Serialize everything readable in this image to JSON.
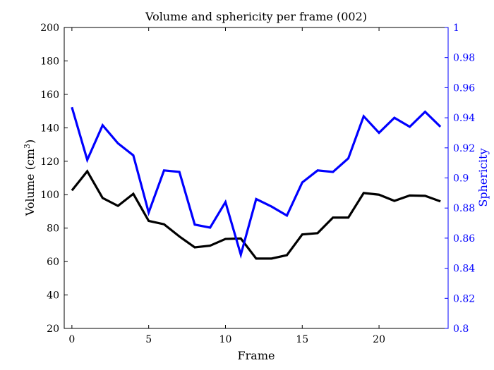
{
  "chart_data": {
    "type": "line",
    "title": "Volume and sphericity per frame (002)",
    "xlabel": "Frame",
    "ylabel_left": "Volume (cm",
    "ylabel_left_superscript": "3",
    "ylabel_left_suffix": ")",
    "ylabel_right": "Sphericity",
    "xlim": [
      -0.5,
      24.5
    ],
    "ylim_left": [
      20,
      200
    ],
    "ylim_right": [
      0.8,
      1.0
    ],
    "x_ticks": [
      0,
      5,
      10,
      15,
      20
    ],
    "x_tick_labels": [
      "0",
      "5",
      "10",
      "15",
      "20"
    ],
    "y_left_ticks": [
      20,
      40,
      60,
      80,
      100,
      120,
      140,
      160,
      180,
      200
    ],
    "y_left_tick_labels": [
      "20",
      "40",
      "60",
      "80",
      "100",
      "120",
      "140",
      "160",
      "180",
      "200"
    ],
    "y_right_ticks": [
      0.8,
      0.82,
      0.84,
      0.86,
      0.88,
      0.9,
      0.92,
      0.94,
      0.96,
      0.98,
      1.0
    ],
    "y_right_tick_labels": [
      "0.8",
      "0.82",
      "0.84",
      "0.86",
      "0.88",
      "0.9",
      "0.92",
      "0.94",
      "0.96",
      "0.98",
      "1"
    ],
    "grid": false,
    "x": [
      0,
      1,
      2,
      3,
      4,
      5,
      6,
      7,
      8,
      9,
      10,
      11,
      12,
      13,
      14,
      15,
      16,
      17,
      18,
      19,
      20,
      21,
      22,
      23,
      24
    ],
    "series": [
      {
        "axis": "left",
        "color": "#000000",
        "values": [
          102.5,
          114.0,
          98.0,
          93.3,
          100.5,
          84.3,
          82.3,
          75.0,
          68.5,
          69.5,
          73.5,
          73.8,
          61.8,
          61.8,
          63.8,
          76.2,
          77.0,
          86.3,
          86.3,
          101.0,
          100.0,
          96.3,
          99.5,
          99.3,
          96.0
        ]
      },
      {
        "axis": "right",
        "color": "#0000ff",
        "values": [
          0.947,
          0.912,
          0.935,
          0.923,
          0.915,
          0.877,
          0.905,
          0.904,
          0.869,
          0.867,
          0.884,
          0.849,
          0.886,
          0.881,
          0.875,
          0.897,
          0.905,
          0.904,
          0.913,
          0.941,
          0.93,
          0.94,
          0.934,
          0.944,
          0.934
        ]
      }
    ],
    "colors": {
      "left_axis": "#000000",
      "right_axis": "#0000ff"
    }
  }
}
